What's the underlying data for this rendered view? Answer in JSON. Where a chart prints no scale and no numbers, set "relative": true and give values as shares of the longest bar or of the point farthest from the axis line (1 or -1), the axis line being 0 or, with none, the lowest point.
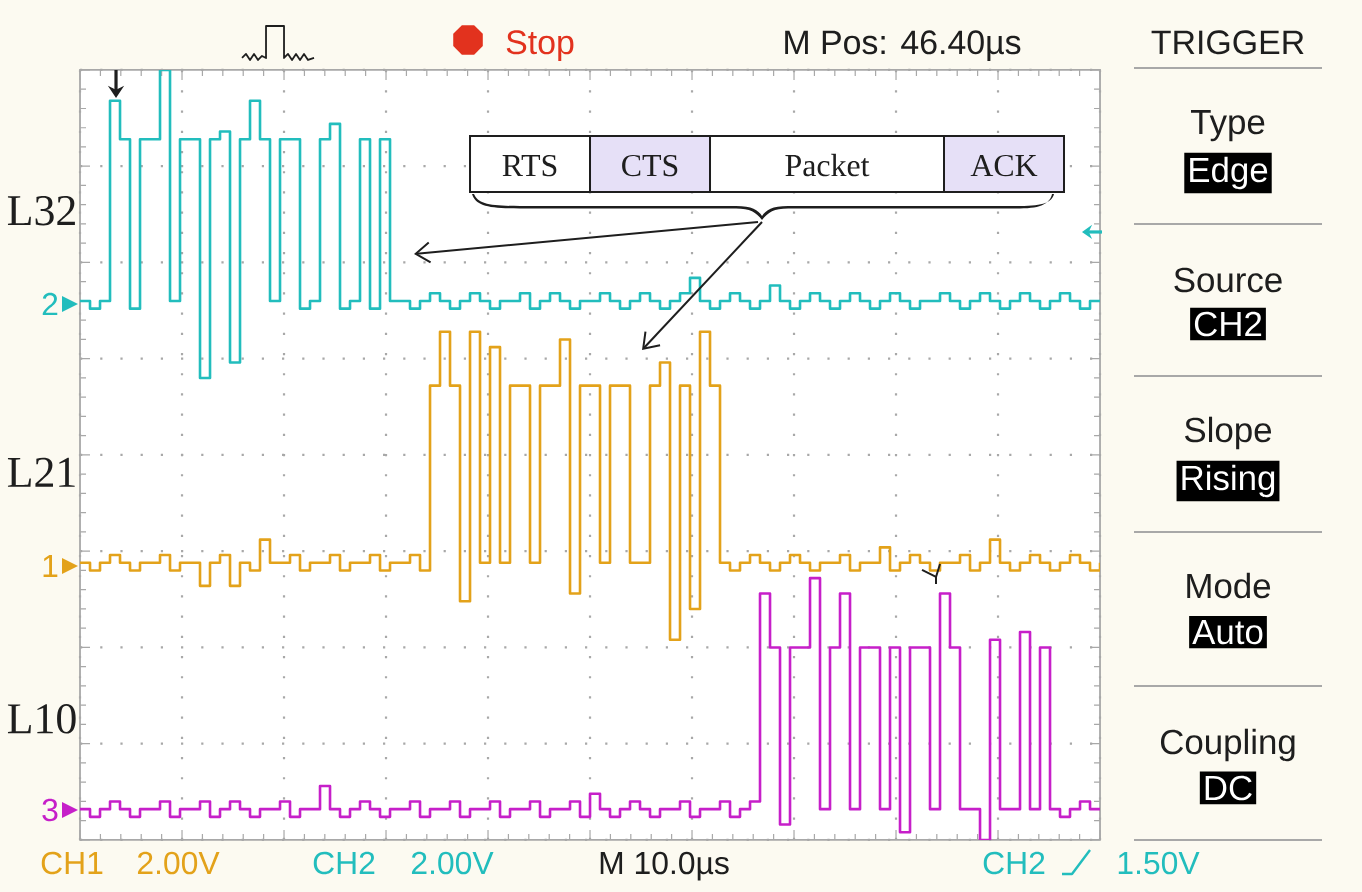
{
  "chart_data": {
    "type": "step",
    "relative": true,
    "grid": true,
    "categories": [
      null,
      null,
      null,
      null,
      null,
      null,
      null,
      null,
      null,
      null,
      null,
      null,
      null,
      null,
      null,
      null,
      null,
      null,
      null,
      null,
      null,
      null,
      null,
      null,
      null,
      null,
      null,
      null,
      null,
      null,
      null,
      null,
      null,
      null,
      null,
      null,
      null,
      null,
      null,
      null,
      null,
      null,
      null,
      null,
      null,
      null,
      null,
      null,
      null,
      null,
      null,
      null,
      null,
      null,
      null,
      null,
      null,
      null,
      null,
      null,
      null,
      null,
      null,
      null,
      null,
      null,
      null,
      null,
      null,
      null,
      null,
      null,
      null,
      null,
      null,
      null,
      null,
      null,
      null,
      null,
      null,
      null,
      null,
      null,
      null,
      null,
      null,
      null,
      null,
      null,
      null,
      null,
      null,
      null,
      null,
      null,
      null,
      null,
      null,
      null,
      null,
      null,
      null
    ],
    "series": [
      {
        "name": "L32",
        "color": "#22bdbd",
        "values": [
          0.7,
          0.69,
          0.7,
          0.96,
          0.91,
          0.69,
          0.91,
          0.91,
          1.0,
          0.7,
          0.91,
          0.91,
          0.6,
          0.91,
          0.92,
          0.62,
          0.91,
          0.96,
          0.91,
          0.7,
          0.91,
          0.91,
          0.69,
          0.7,
          0.91,
          0.93,
          0.69,
          0.7,
          0.91,
          0.69,
          0.91,
          0.7,
          0.7,
          0.69,
          0.7,
          0.71,
          0.7,
          0.69,
          0.7,
          0.71,
          0.7,
          0.69,
          0.7,
          0.7,
          0.71,
          0.69,
          0.7,
          0.71,
          0.7,
          0.69,
          0.7,
          0.7,
          0.71,
          0.7,
          0.69,
          0.7,
          0.71,
          0.7,
          0.69,
          0.7,
          0.71,
          0.73,
          0.7,
          0.69,
          0.7,
          0.71,
          0.7,
          0.69,
          0.7,
          0.72,
          0.7,
          0.69,
          0.7,
          0.71,
          0.7,
          0.69,
          0.7,
          0.71,
          0.7,
          0.69,
          0.7,
          0.71,
          0.7,
          0.69,
          0.7,
          0.7,
          0.71,
          0.7,
          0.69,
          0.7,
          0.71,
          0.7,
          0.69,
          0.7,
          0.71,
          0.7,
          0.69,
          0.7,
          0.71,
          0.7,
          0.69,
          0.7,
          0.7
        ]
      },
      {
        "name": "L21",
        "color": "#e3a21a",
        "values": [
          0.36,
          0.35,
          0.36,
          0.37,
          0.36,
          0.35,
          0.36,
          0.36,
          0.37,
          0.35,
          0.36,
          0.36,
          0.33,
          0.36,
          0.37,
          0.33,
          0.36,
          0.35,
          0.39,
          0.36,
          0.36,
          0.37,
          0.35,
          0.36,
          0.36,
          0.37,
          0.35,
          0.36,
          0.36,
          0.37,
          0.35,
          0.36,
          0.36,
          0.37,
          0.35,
          0.59,
          0.66,
          0.59,
          0.31,
          0.66,
          0.36,
          0.64,
          0.36,
          0.59,
          0.59,
          0.36,
          0.59,
          0.59,
          0.65,
          0.32,
          0.59,
          0.59,
          0.36,
          0.59,
          0.59,
          0.36,
          0.36,
          0.59,
          0.62,
          0.26,
          0.59,
          0.3,
          0.66,
          0.59,
          0.36,
          0.35,
          0.36,
          0.37,
          0.36,
          0.35,
          0.36,
          0.37,
          0.36,
          0.35,
          0.36,
          0.36,
          0.37,
          0.35,
          0.36,
          0.36,
          0.38,
          0.35,
          0.36,
          0.37,
          0.36,
          0.35,
          0.36,
          0.36,
          0.37,
          0.35,
          0.36,
          0.39,
          0.36,
          0.35,
          0.36,
          0.37,
          0.36,
          0.35,
          0.36,
          0.37,
          0.36,
          0.35,
          0.36
        ]
      },
      {
        "name": "L10",
        "color": "#c61fc9",
        "values": [
          0.04,
          0.03,
          0.04,
          0.05,
          0.04,
          0.03,
          0.04,
          0.04,
          0.05,
          0.03,
          0.04,
          0.04,
          0.05,
          0.03,
          0.04,
          0.05,
          0.04,
          0.03,
          0.04,
          0.04,
          0.05,
          0.03,
          0.04,
          0.04,
          0.07,
          0.04,
          0.03,
          0.04,
          0.05,
          0.04,
          0.03,
          0.04,
          0.04,
          0.05,
          0.03,
          0.04,
          0.04,
          0.05,
          0.03,
          0.04,
          0.04,
          0.05,
          0.03,
          0.04,
          0.04,
          0.05,
          0.03,
          0.04,
          0.04,
          0.05,
          0.03,
          0.06,
          0.04,
          0.03,
          0.04,
          0.05,
          0.04,
          0.03,
          0.04,
          0.04,
          0.05,
          0.03,
          0.04,
          0.04,
          0.05,
          0.03,
          0.04,
          0.05,
          0.32,
          0.25,
          0.02,
          0.25,
          0.25,
          0.34,
          0.04,
          0.25,
          0.32,
          0.04,
          0.25,
          0.25,
          0.04,
          0.25,
          0.01,
          0.25,
          0.25,
          0.04,
          0.32,
          0.25,
          0.04,
          0.04,
          0.0,
          0.26,
          0.04,
          0.04,
          0.27,
          0.04,
          0.25,
          0.04,
          0.03,
          0.04,
          0.05,
          0.04,
          0.04
        ]
      }
    ],
    "annotations": [
      "Stop",
      "M Pos: 46.40µs",
      "TRIGGER",
      "Type",
      "Edge",
      "Source",
      "CH2",
      "Slope",
      "Rising",
      "Mode",
      "Auto",
      "Coupling",
      "DC",
      "CH1",
      "2.00V",
      "CH2",
      "2.00V",
      "M 10.0µs",
      "CH2",
      "1.50V",
      "RTS",
      "CTS",
      "Packet",
      "ACK",
      "2",
      "1",
      "3"
    ]
  }
}
